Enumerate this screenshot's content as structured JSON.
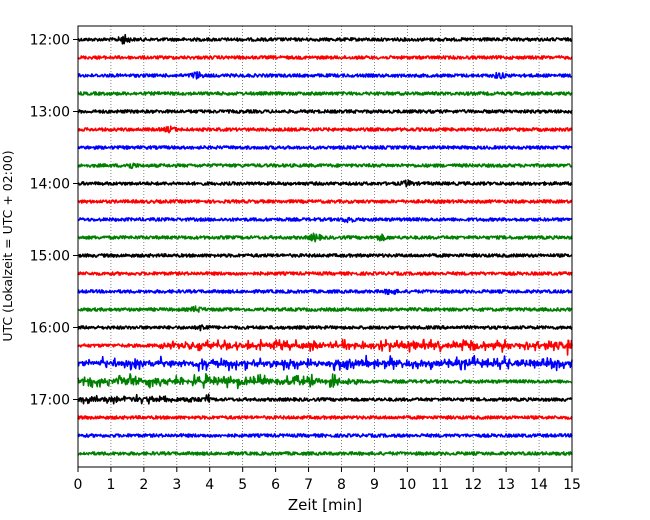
{
  "chart_data": {
    "type": "line",
    "xlabel": "Zeit  [min]",
    "ylabel": "UTC (Lokalzeit = UTC + 02:00)",
    "xlim": [
      0,
      15
    ],
    "xticks": [
      "0",
      "1",
      "2",
      "3",
      "4",
      "5",
      "6",
      "7",
      "8",
      "9",
      "10",
      "11",
      "12",
      "13",
      "14",
      "15"
    ],
    "yticks": [
      "12:00",
      "13:00",
      "14:00",
      "15:00",
      "16:00",
      "17:00"
    ],
    "trace_interval_min": 15,
    "trace_count": 24,
    "first_trace": "12:00",
    "trace_colors": [
      "#000000",
      "#ff0000",
      "#0000ff",
      "#008000"
    ],
    "grid": "x-dotted",
    "events": [
      {
        "trace": 0,
        "t": 1.4,
        "amp": 2.2
      },
      {
        "trace": 2,
        "t": 3.6,
        "amp": 1.8
      },
      {
        "trace": 2,
        "t": 12.8,
        "amp": 1.4
      },
      {
        "trace": 5,
        "t": 2.8,
        "amp": 1.3
      },
      {
        "trace": 7,
        "t": 1.6,
        "amp": 1.3
      },
      {
        "trace": 8,
        "t": 10.0,
        "amp": 1.3
      },
      {
        "trace": 10,
        "t": 8.2,
        "amp": 1.3
      },
      {
        "trace": 11,
        "t": 7.2,
        "amp": 1.9
      },
      {
        "trace": 11,
        "t": 9.2,
        "amp": 1.3
      },
      {
        "trace": 14,
        "t": 9.5,
        "amp": 1.4
      },
      {
        "trace": 15,
        "t": 3.6,
        "amp": 1.3
      },
      {
        "trace": 16,
        "t": 3.8,
        "amp": 1.5
      },
      {
        "trace": 17,
        "t": 14.9,
        "amp": 1.6
      },
      {
        "trace": 19,
        "t": 1.5,
        "amp": 1.6
      }
    ],
    "noisy_traces": [
      {
        "trace": 17,
        "from": 2.5,
        "to": 15,
        "amp": 1.7
      },
      {
        "trace": 18,
        "from": 0,
        "to": 15,
        "amp": 1.9
      },
      {
        "trace": 19,
        "from": 0,
        "to": 8.5,
        "amp": 1.9
      },
      {
        "trace": 20,
        "from": 0,
        "to": 4.0,
        "amp": 1.5
      }
    ]
  }
}
